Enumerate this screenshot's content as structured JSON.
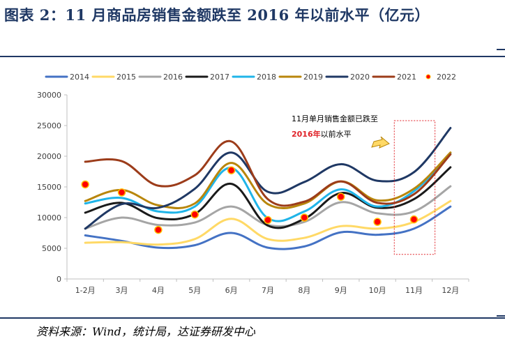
{
  "header": {
    "title": "图表 2：11 月商品房销售金额跌至 2016 年以前水平（亿元）"
  },
  "source": "资料来源：Wind，统计局，达证券研发中心",
  "annotation": {
    "line1": "11月单月销售金额已跌至",
    "highlight": "2016年",
    "line2_rest": "以前水平"
  },
  "chart_data": {
    "type": "line",
    "categories": [
      "1-2月",
      "3月",
      "4月",
      "5月",
      "6月",
      "7月",
      "8月",
      "9月",
      "10月",
      "11月",
      "12月"
    ],
    "ylim": [
      0,
      30000
    ],
    "yticks": [
      0,
      5000,
      10000,
      15000,
      20000,
      25000,
      30000
    ],
    "legend_position": "top",
    "series": [
      {
        "name": "2014",
        "color": "#4472c4",
        "values": [
          7100,
          6200,
          5100,
          5500,
          7500,
          5100,
          5300,
          7600,
          7200,
          8200,
          11800
        ]
      },
      {
        "name": "2015",
        "color": "#ffd966",
        "values": [
          5900,
          6000,
          5600,
          6500,
          9800,
          6500,
          6700,
          8600,
          8200,
          9300,
          12700
        ]
      },
      {
        "name": "2016",
        "color": "#a5a5a5",
        "values": [
          8200,
          10000,
          8800,
          9200,
          11800,
          8800,
          9300,
          12500,
          10700,
          11000,
          15100
        ]
      },
      {
        "name": "2017",
        "color": "#1a1a1a",
        "values": [
          10800,
          12400,
          9900,
          10600,
          15500,
          8700,
          9800,
          14000,
          11600,
          13000,
          18200
        ]
      },
      {
        "name": "2018",
        "color": "#1fb4e8",
        "values": [
          12300,
          13200,
          11000,
          11800,
          18100,
          9900,
          11000,
          14600,
          11800,
          14300,
          20500
        ]
      },
      {
        "name": "2019",
        "color": "#b8860b",
        "values": [
          12700,
          14500,
          12000,
          12300,
          18900,
          12200,
          12300,
          15900,
          12800,
          14700,
          20600
        ]
      },
      {
        "name": "2020",
        "color": "#1f3864",
        "values": [
          8200,
          12200,
          11600,
          14700,
          20600,
          14200,
          15800,
          18700,
          16000,
          17400,
          24600
        ]
      },
      {
        "name": "2021",
        "color": "#9c3c1a",
        "values": [
          19100,
          19200,
          15200,
          16900,
          22400,
          13000,
          12600,
          15900,
          12400,
          13800,
          20300
        ]
      },
      {
        "name": "2022",
        "color": "#ff0000",
        "type": "scatter",
        "values": [
          15400,
          14100,
          8000,
          10500,
          17700,
          9600,
          10000,
          13400,
          9300,
          9700,
          null
        ]
      }
    ]
  }
}
